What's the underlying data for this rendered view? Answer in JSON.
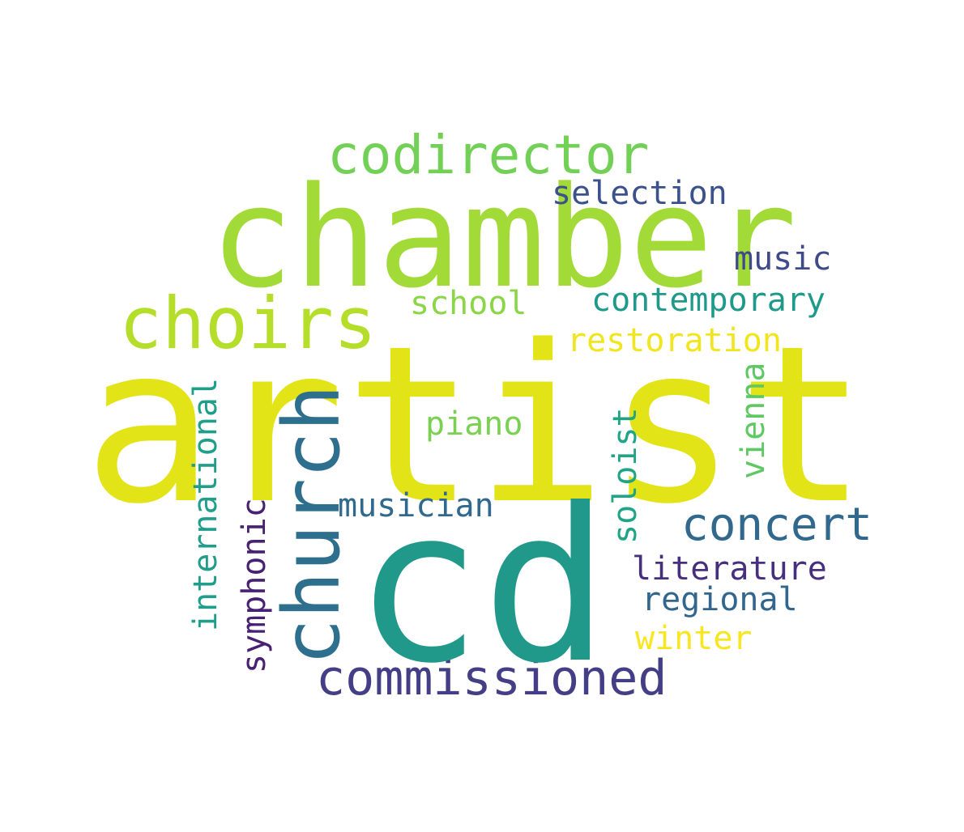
{
  "words": {
    "artist": {
      "text": "artist",
      "color": "#e2e418"
    },
    "cd": {
      "text": "cd",
      "color": "#21998a"
    },
    "chamber": {
      "text": "chamber",
      "color": "#a2da37"
    },
    "choirs": {
      "text": "choirs",
      "color": "#b5de2b"
    },
    "church": {
      "text": "church",
      "color": "#2e6f8e"
    },
    "codirector": {
      "text": "codirector",
      "color": "#73d056"
    },
    "commissioned": {
      "text": "commissioned",
      "color": "#433e85"
    },
    "concert": {
      "text": "concert",
      "color": "#30688e"
    },
    "selection": {
      "text": "selection",
      "color": "#3b518b"
    },
    "music": {
      "text": "music",
      "color": "#3e4a89"
    },
    "contemporary": {
      "text": "contemporary",
      "color": "#1f9a8a"
    },
    "school": {
      "text": "school",
      "color": "#8bd646"
    },
    "restoration": {
      "text": "restoration",
      "color": "#f1e51d"
    },
    "piano": {
      "text": "piano",
      "color": "#7ad151"
    },
    "musician": {
      "text": "musician",
      "color": "#31688e"
    },
    "literature": {
      "text": "literature",
      "color": "#46307e"
    },
    "regional": {
      "text": "regional",
      "color": "#31668e"
    },
    "winter": {
      "text": "winter",
      "color": "#f8e621"
    },
    "international": {
      "text": "international",
      "color": "#1f9e89"
    },
    "symphonic": {
      "text": "symphonic",
      "color": "#482173"
    },
    "soloist": {
      "text": "soloist",
      "color": "#20a486"
    },
    "vienna": {
      "text": "vienna",
      "color": "#5ec962"
    }
  }
}
